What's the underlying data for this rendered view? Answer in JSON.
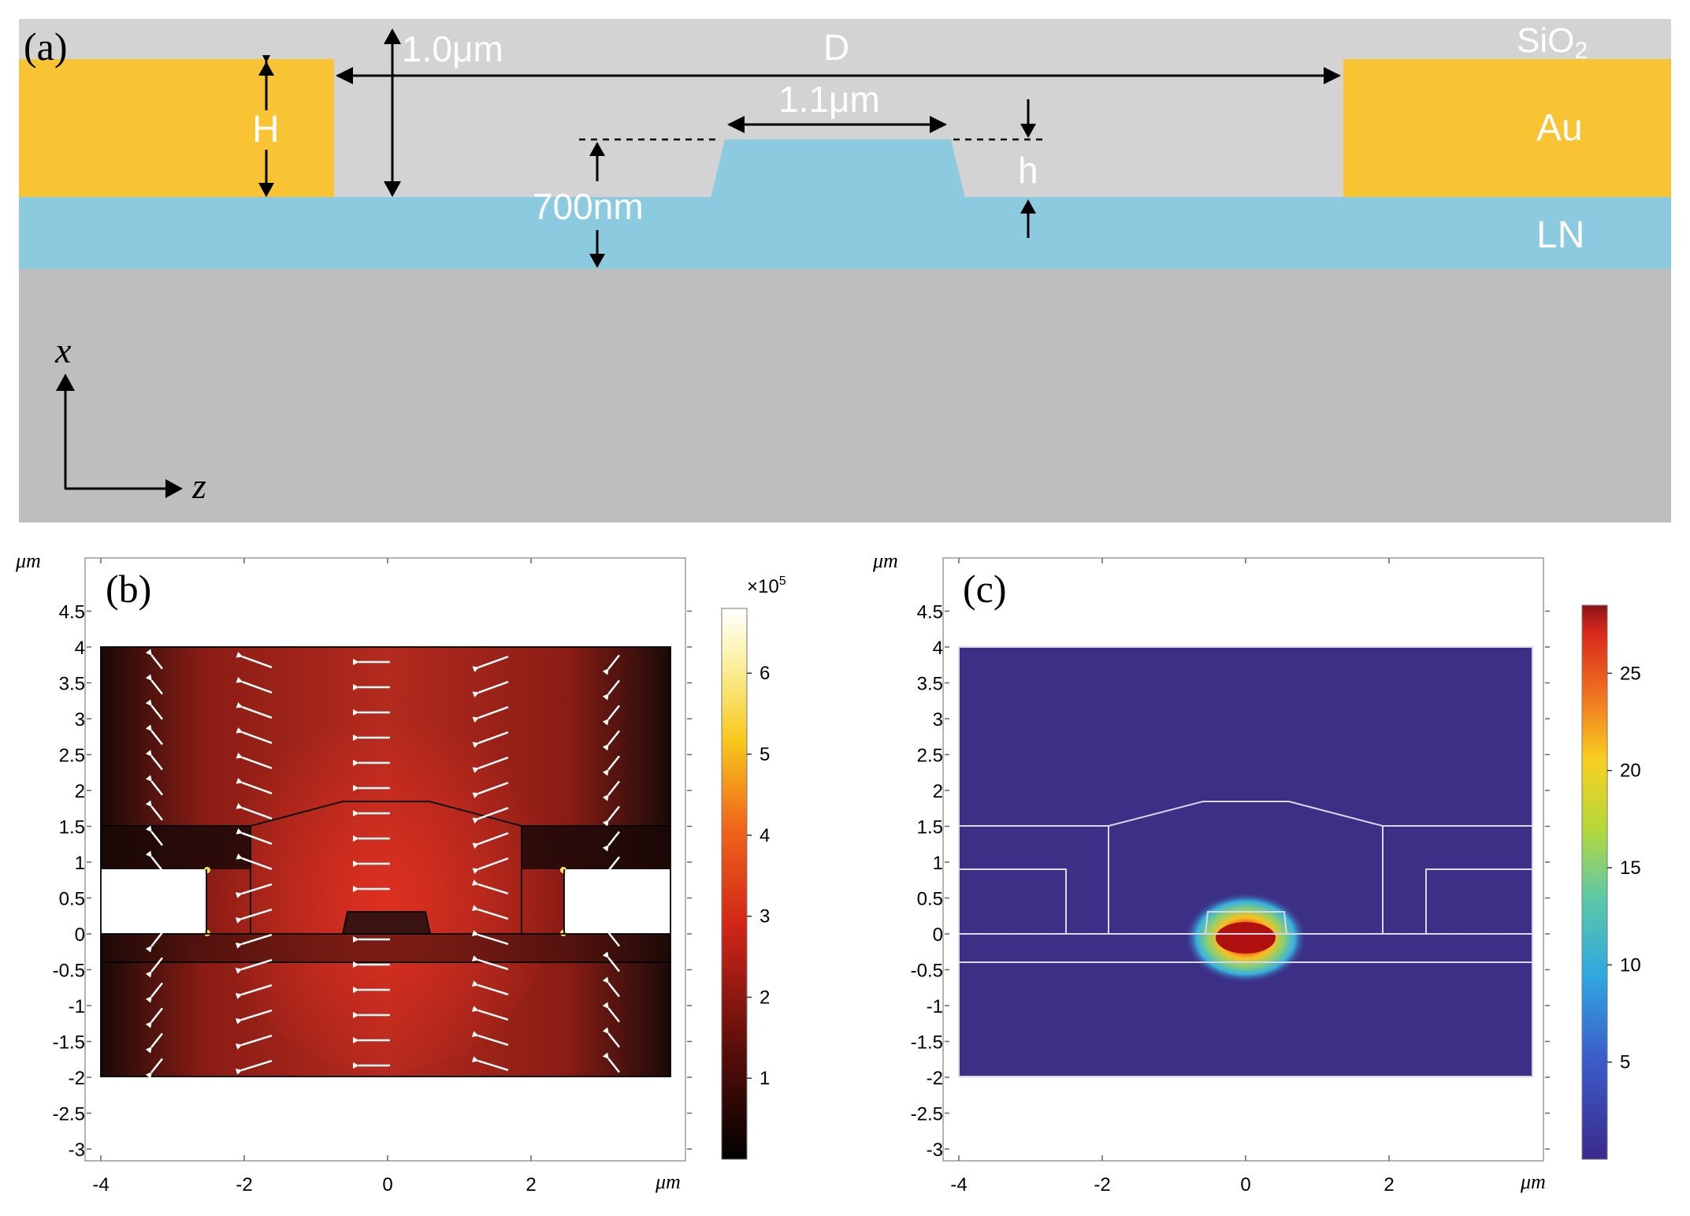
{
  "panel_a": {
    "label": "(a)",
    "layers": {
      "sio2": "SiO2",
      "sio2_base": "SiO",
      "sio2_sub": "2",
      "au": "Au",
      "ln": "LN"
    },
    "dims": {
      "H": "H",
      "D": "D",
      "h": "h",
      "thickness_total": "1.0μm",
      "ridge_width": "1.1μm",
      "film": "700nm"
    },
    "axes": {
      "x": "x",
      "z": "z"
    },
    "colors": {
      "sio2": "#d3d3d3",
      "au": "#f8c433",
      "ln": "#8ccbdf",
      "substrate": "#bebebe"
    }
  },
  "chart_data": [
    {
      "type": "heatmap",
      "label": "(b)",
      "unit": "μm",
      "x_ticks": [
        "-4",
        "-2",
        "0",
        "2"
      ],
      "y_ticks": [
        "4.5",
        "4",
        "3.5",
        "3",
        "2.5",
        "2",
        "1.5",
        "1",
        "0.5",
        "0",
        "-0.5",
        "-1",
        "-1.5",
        "-2",
        "-2.5",
        "-3"
      ],
      "xlim": [
        -4,
        4
      ],
      "ylim": [
        -3.3,
        5
      ],
      "colorbar": {
        "multiplier": "×10",
        "exponent": "5",
        "ticks": [
          "6",
          "5",
          "4",
          "3",
          "2",
          "1"
        ],
        "min": 0,
        "max": 6.8
      },
      "geometry": {
        "domain_x": [
          -4,
          4
        ],
        "domain_y": [
          -2,
          4
        ],
        "electrodes": [
          [
            -4,
            -2.5,
            0,
            0.9
          ],
          [
            2.5,
            4,
            0,
            0.9
          ]
        ],
        "ln_slab": [
          -0.4,
          0
        ],
        "cladding_top": 1.5,
        "ridge": [
          [
            -0.6,
            0
          ],
          [
            -0.53,
            0.3
          ],
          [
            0.53,
            0.3
          ],
          [
            0.6,
            0
          ]
        ],
        "cladding_shape": [
          [
            -1.9,
            1.5
          ],
          [
            -0.6,
            1.85
          ],
          [
            0.6,
            1.85
          ],
          [
            1.9,
            1.5
          ]
        ]
      }
    },
    {
      "type": "heatmap",
      "label": "(c)",
      "unit": "μm",
      "x_ticks": [
        "-4",
        "-2",
        "0",
        "2"
      ],
      "y_ticks": [
        "4.5",
        "4",
        "3.5",
        "3",
        "2.5",
        "2",
        "1.5",
        "1",
        "0.5",
        "0",
        "-0.5",
        "-1",
        "-1.5",
        "-2",
        "-2.5",
        "-3"
      ],
      "xlim": [
        -4,
        4
      ],
      "ylim": [
        -3.3,
        5
      ],
      "colorbar": {
        "ticks": [
          "25",
          "20",
          "15",
          "10",
          "5"
        ],
        "min": 0,
        "max": 28.5
      },
      "mode_peak": {
        "x": 0,
        "y": 0,
        "value": 28
      }
    }
  ]
}
